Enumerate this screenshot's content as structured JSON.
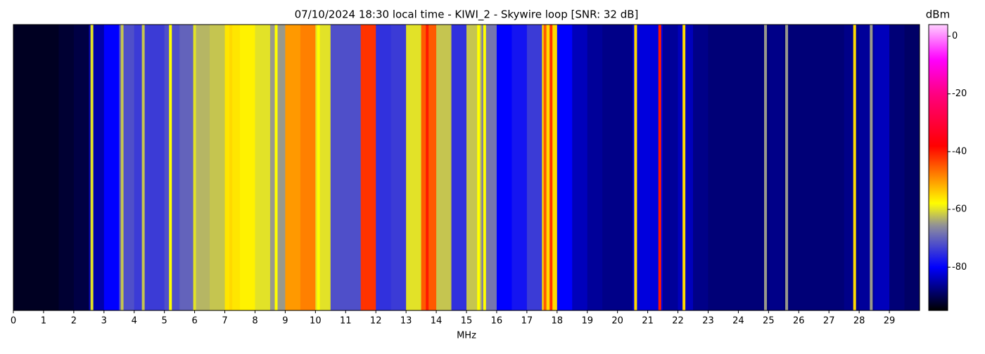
{
  "chart_data": {
    "type": "spectrogram",
    "title": "07/10/2024 18:30 local time - KIWI_2 - Skywire loop [SNR: 32 dB]",
    "xlabel": "MHz",
    "colorbar_label": "dBm",
    "bin_width": 0.5,
    "values": [
      -93,
      -93,
      -93,
      -92,
      -91,
      -85,
      -80,
      -72,
      -74,
      -74,
      -72,
      -70,
      -63,
      -62,
      -56,
      -57,
      -60,
      -65,
      -50,
      -48,
      -60,
      -72,
      -72,
      -42,
      -75,
      -74,
      -60,
      -45,
      -62,
      -75,
      -62,
      -68,
      -80,
      -78,
      -74,
      -55,
      -80,
      -84,
      -86,
      -87,
      -87,
      -82,
      -82,
      -86,
      -84,
      -87,
      -88,
      -88,
      -88,
      -88,
      -87,
      -88,
      -88,
      -88,
      -88,
      -87,
      -86,
      -84,
      -88,
      -89
    ],
    "signals": {
      "x": [
        2.6,
        3.6,
        4.3,
        5.2,
        6.0,
        7.2,
        8.7,
        10.1,
        11.6,
        11.95,
        13.7,
        15.4,
        15.6,
        17.6,
        17.8,
        20.6,
        21.4,
        22.2,
        24.9,
        25.6,
        27.85,
        28.4
      ],
      "values": [
        -60,
        -62,
        -62,
        -58,
        -60,
        -55,
        -58,
        -58,
        -42,
        -42,
        -40,
        -58,
        -58,
        -45,
        -42,
        -55,
        -40,
        -55,
        -65,
        -65,
        -55,
        -65
      ]
    },
    "xlim": [
      0,
      30
    ],
    "xticks": [
      0,
      1,
      2,
      3,
      4,
      5,
      6,
      7,
      8,
      9,
      10,
      11,
      12,
      13,
      14,
      15,
      16,
      17,
      18,
      19,
      20,
      21,
      22,
      23,
      24,
      25,
      26,
      27,
      28,
      29
    ],
    "clim": [
      -95,
      4
    ],
    "cticks": [
      0,
      -20,
      -40,
      -60,
      -80
    ],
    "colorscale": [
      {
        "value": -95,
        "color": "#000000"
      },
      {
        "value": -80,
        "color": "#0000ff"
      },
      {
        "value": -66,
        "color": "#8a8aa0"
      },
      {
        "value": -58,
        "color": "#ffff00"
      },
      {
        "value": -48,
        "color": "#ff8000"
      },
      {
        "value": -38,
        "color": "#ff0000"
      },
      {
        "value": -20,
        "color": "#ff0080"
      },
      {
        "value": -8,
        "color": "#ff00ff"
      },
      {
        "value": 4,
        "color": "#ffd0ff"
      }
    ]
  }
}
